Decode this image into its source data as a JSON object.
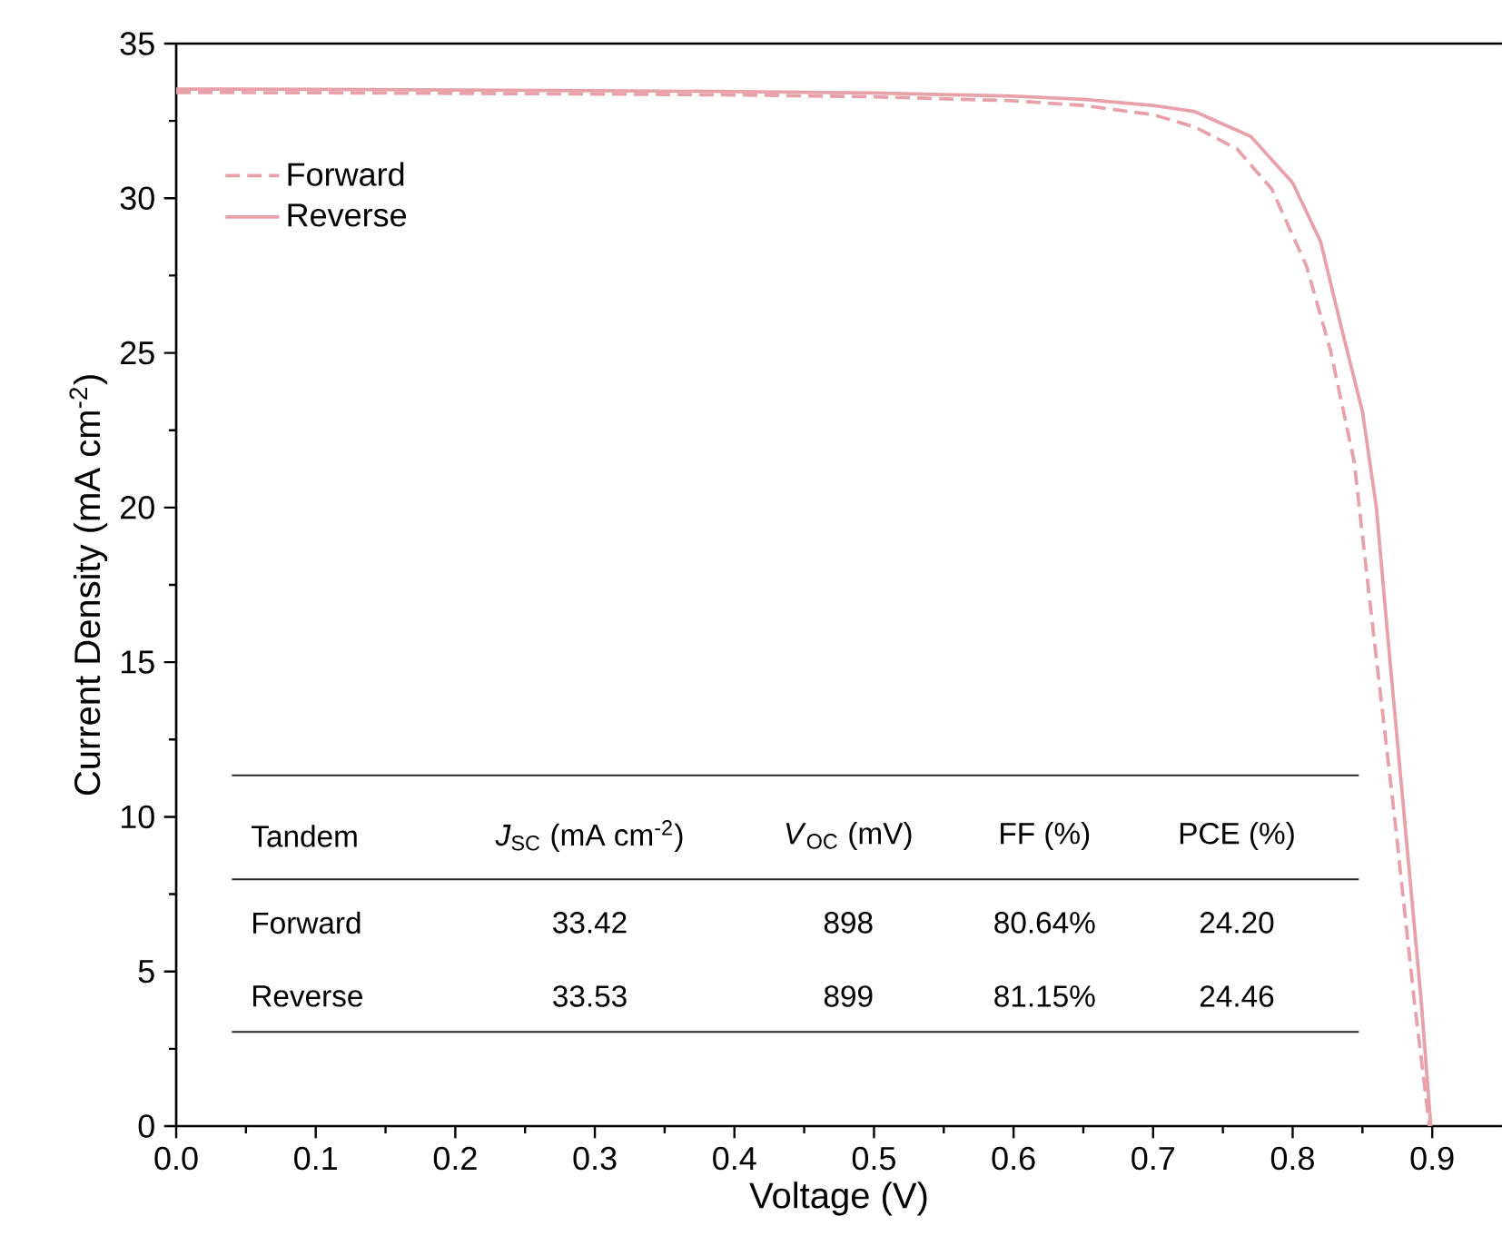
{
  "chart_data": {
    "type": "line",
    "xlabel": "Voltage (V)",
    "ylabel": "Current Density (mA cm$^{-2}$)",
    "xlim": [
      0,
      0.95
    ],
    "xticks": [
      {
        "value": 0,
        "label": "0.0"
      },
      {
        "value": 0.1,
        "label": "0.1"
      },
      {
        "value": 0.2,
        "label": "0.2"
      },
      {
        "value": 0.3,
        "label": "0.3"
      },
      {
        "value": 0.4,
        "label": "0.4"
      },
      {
        "value": 0.5,
        "label": "0.5"
      },
      {
        "value": 0.6,
        "label": "0.6"
      },
      {
        "value": 0.7,
        "label": "0.7"
      },
      {
        "value": 0.8,
        "label": "0.8"
      },
      {
        "value": 0.9,
        "label": "0.9"
      }
    ],
    "ylim": [
      0,
      35
    ],
    "yticks": [
      0,
      5,
      10,
      15,
      20,
      25,
      30,
      35
    ],
    "legend": "top left",
    "marker": "none",
    "series": [
      {
        "name": "Forward",
        "color": "#e8a1a8",
        "line_style": "dashed",
        "x": [
          0,
          0.1,
          0.2,
          0.3,
          0.4,
          0.5,
          0.6,
          0.65,
          0.7,
          0.73,
          0.76,
          0.785,
          0.81,
          0.827,
          0.844,
          0.858,
          0.873,
          0.887,
          0.898
        ],
        "values": [
          33.42,
          33.41,
          33.39,
          33.37,
          33.34,
          33.28,
          33.15,
          33.0,
          32.7,
          32.3,
          31.6,
          30.3,
          27.8,
          25.1,
          21.5,
          15.9,
          10.0,
          4.1,
          0
        ]
      },
      {
        "name": "Reverse",
        "color": "#e8a1a8",
        "line_style": "solid",
        "x": [
          0,
          0.1,
          0.2,
          0.3,
          0.4,
          0.5,
          0.6,
          0.65,
          0.7,
          0.73,
          0.77,
          0.8,
          0.82,
          0.835,
          0.85,
          0.86,
          0.868,
          0.88,
          0.892,
          0.899
        ],
        "values": [
          33.53,
          33.52,
          33.5,
          33.48,
          33.45,
          33.4,
          33.3,
          33.2,
          33.0,
          32.8,
          32.0,
          30.5,
          28.6,
          25.8,
          23.1,
          20.0,
          15.9,
          10.0,
          4.1,
          0
        ]
      }
    ],
    "annotations": [
      "Tandem",
      "*J*$_{SC}$ (mA cm$^{-2}$)",
      "*V*$_{OC}$ (mV)",
      "FF (%)",
      "PCE (%)",
      "Forward",
      "33.42",
      "898",
      "80.64%",
      "24.20",
      "Reverse",
      "33.53",
      "899",
      "81.15%",
      "24.46"
    ]
  }
}
